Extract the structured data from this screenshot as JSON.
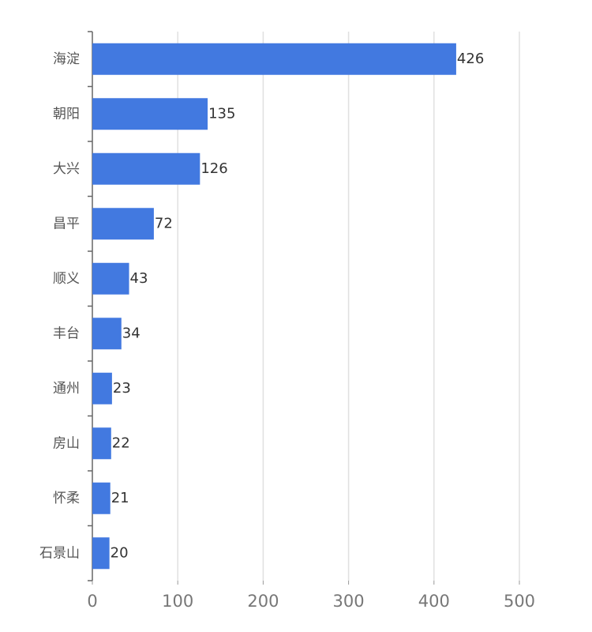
{
  "chart_data": {
    "type": "hbar",
    "categories": [
      "海淀",
      "朝阳",
      "大兴",
      "昌平",
      "顺义",
      "丰台",
      "通州",
      "房山",
      "怀柔",
      "石景山"
    ],
    "values": [
      426,
      135,
      126,
      72,
      43,
      34,
      23,
      22,
      21,
      20
    ],
    "color": "#4279e0",
    "xlim": [
      0,
      500
    ],
    "xticks": [
      0,
      100,
      200,
      300,
      400,
      500
    ],
    "grid": true
  }
}
